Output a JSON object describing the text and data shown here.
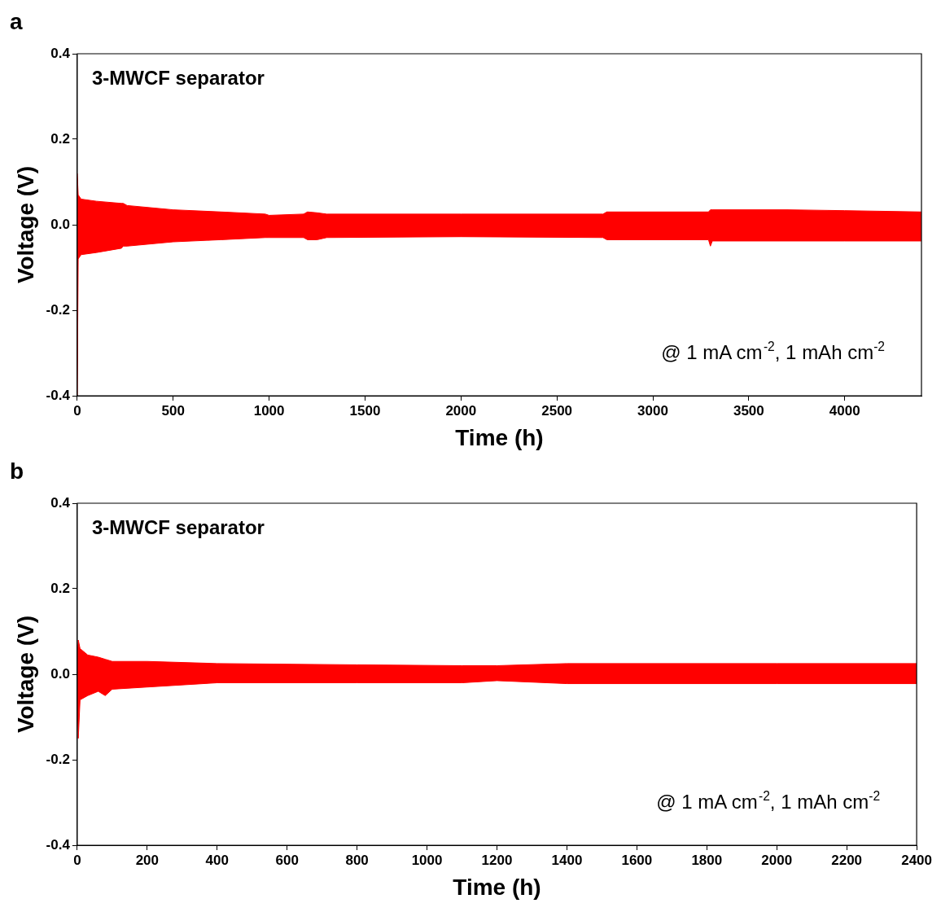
{
  "chart_data": [
    {
      "type": "area",
      "title": "a",
      "xlabel": "Time (h)",
      "ylabel": "Voltage (V)",
      "annotations": [
        "3-MWCF separator",
        "@ 1 mA cm$^{-2}$, 1 mAh cm$^{-2}$"
      ],
      "xlim": [
        0,
        4400
      ],
      "xticks": [
        0,
        500,
        1000,
        1500,
        2000,
        2500,
        3000,
        3500,
        4000
      ],
      "ylim": [
        -0.4,
        0.4
      ],
      "yticks": [
        {
          "value": -0.4,
          "label": "-0.4"
        },
        {
          "value": -0.2,
          "label": "-0.2"
        },
        {
          "value": 0,
          "label": "0.0"
        },
        {
          "value": 0.2,
          "label": "0.2"
        },
        {
          "value": 0.4,
          "label": "0.4"
        }
      ],
      "grid": false,
      "legend": false,
      "x": [
        0,
        5,
        20,
        100,
        230,
        240,
        260,
        500,
        750,
        980,
        1000,
        1180,
        1200,
        1250,
        1300,
        2000,
        2740,
        2760,
        3290,
        3300,
        3310,
        3700,
        4000,
        4400
      ],
      "series": [
        {
          "color": "#ff0000",
          "values": [
            0.12,
            0.07,
            0.06,
            0.055,
            0.05,
            0.05,
            0.045,
            0.035,
            0.03,
            0.025,
            0.022,
            0.025,
            0.03,
            0.028,
            0.025,
            0.025,
            0.025,
            0.03,
            0.03,
            0.035,
            0.035,
            0.035,
            0.033,
            0.03
          ]
        },
        {
          "color": "#ff0000",
          "values": [
            -0.4,
            -0.08,
            -0.07,
            -0.065,
            -0.055,
            -0.05,
            -0.05,
            -0.04,
            -0.035,
            -0.03,
            -0.03,
            -0.03,
            -0.035,
            -0.035,
            -0.03,
            -0.028,
            -0.03,
            -0.035,
            -0.035,
            -0.05,
            -0.038,
            -0.038,
            -0.038,
            -0.038
          ]
        }
      ]
    },
    {
      "type": "area",
      "title": "b",
      "xlabel": "Time (h)",
      "ylabel": "Voltage (V)",
      "annotations": [
        "3-MWCF separator",
        "@ 1 mA cm$^{-2}$, 1 mAh cm$^{-2}$"
      ],
      "xlim": [
        0,
        2400
      ],
      "xticks": [
        0,
        200,
        400,
        600,
        800,
        1000,
        1200,
        1400,
        1600,
        1800,
        2000,
        2200,
        2400
      ],
      "ylim": [
        -0.4,
        0.4
      ],
      "yticks": [
        {
          "value": -0.4,
          "label": "-0.4"
        },
        {
          "value": -0.2,
          "label": "-0.2"
        },
        {
          "value": 0,
          "label": "0.0"
        },
        {
          "value": 0.2,
          "label": "0.2"
        },
        {
          "value": 0.4,
          "label": "0.4"
        }
      ],
      "grid": false,
      "legend": false,
      "x": [
        0,
        3,
        8,
        30,
        60,
        80,
        100,
        200,
        400,
        800,
        1100,
        1200,
        1400,
        2000,
        2400
      ],
      "series": [
        {
          "color": "#ff0000",
          "values": [
            0.03,
            0.08,
            0.06,
            0.045,
            0.04,
            0.035,
            0.03,
            0.03,
            0.025,
            0.022,
            0.02,
            0.02,
            0.025,
            0.025,
            0.025
          ]
        },
        {
          "color": "#ff0000",
          "values": [
            -0.03,
            -0.15,
            -0.06,
            -0.05,
            -0.04,
            -0.05,
            -0.035,
            -0.03,
            -0.02,
            -0.02,
            -0.02,
            -0.015,
            -0.022,
            -0.022,
            -0.022
          ]
        }
      ]
    }
  ]
}
